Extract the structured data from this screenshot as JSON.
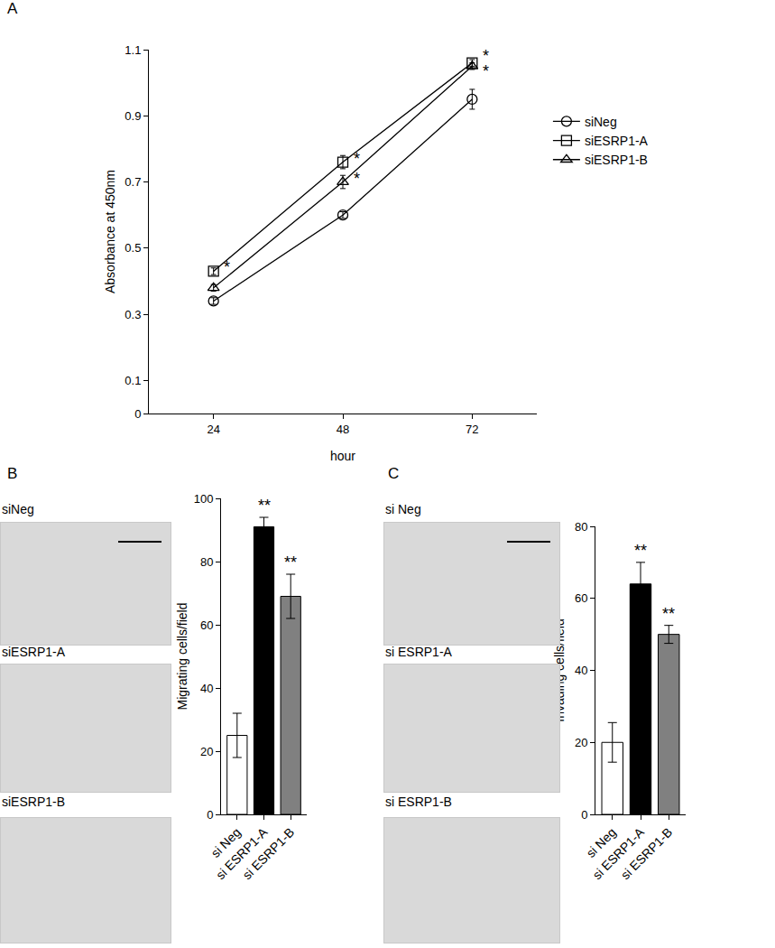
{
  "chart_data": [
    {
      "type": "line",
      "title": "A",
      "x": [
        24,
        48,
        72
      ],
      "x_label": "hour",
      "y_label": "Absorbance at 450nm",
      "xlim": [
        12,
        84
      ],
      "xticks": [
        24,
        48,
        72
      ],
      "ylim": [
        0,
        1.1
      ],
      "yticks": [
        0,
        0.1,
        0.3,
        0.5,
        0.7,
        0.9,
        1.1
      ],
      "legend": "right",
      "grid": false,
      "series": [
        {
          "name": "siNeg",
          "color": "#000000",
          "marker": "circle",
          "values": [
            0.34,
            0.6,
            0.95
          ],
          "errors": [
            0.01,
            0.01,
            0.03
          ]
        },
        {
          "name": "siESRP1-A",
          "color": "#000000",
          "marker": "square",
          "values": [
            0.43,
            0.76,
            1.06
          ],
          "errors": [
            0.01,
            0.02,
            0.01
          ]
        },
        {
          "name": "siESRP1-B",
          "color": "#000000",
          "marker": "triangle",
          "values": [
            0.38,
            0.7,
            1.05
          ],
          "errors": [
            0.01,
            0.02,
            0.01
          ]
        }
      ],
      "annotations": [
        {
          "series": "siESRP1-A",
          "x": 24,
          "text": "*"
        },
        {
          "series": "siESRP1-A",
          "x": 48,
          "text": "*"
        },
        {
          "series": "siESRP1-B",
          "x": 48,
          "text": "*"
        },
        {
          "series": "siESRP1-A",
          "x": 72,
          "text": "*"
        },
        {
          "series": "siESRP1-B",
          "x": 72,
          "text": "*"
        }
      ]
    },
    {
      "type": "bar",
      "title": "B",
      "categories": [
        "si Neg",
        "si ESRP1-A",
        "si ESRP1-B"
      ],
      "values": [
        25,
        91,
        69
      ],
      "errors": [
        7,
        3,
        7
      ],
      "colors": [
        "#ffffff",
        "#000000",
        "#808080"
      ],
      "y_label": "Migrating cells/field",
      "ylim": [
        0,
        100
      ],
      "yticks": [
        0,
        20,
        40,
        60,
        80,
        100
      ],
      "grid": false,
      "annotations": [
        {
          "category": "si ESRP1-A",
          "text": "**"
        },
        {
          "category": "si ESRP1-B",
          "text": "**"
        }
      ]
    },
    {
      "type": "bar",
      "title": "C",
      "categories": [
        "si Neg",
        "si ESRP1-A",
        "si ESRP1-B"
      ],
      "values": [
        20,
        64,
        50
      ],
      "errors": [
        5.5,
        6,
        2.5
      ],
      "colors": [
        "#ffffff",
        "#000000",
        "#808080"
      ],
      "y_label": "Invading cells/field",
      "ylim": [
        0,
        80
      ],
      "yticks": [
        0,
        20,
        40,
        60,
        80
      ],
      "grid": false,
      "annotations": [
        {
          "category": "si ESRP1-A",
          "text": "**"
        },
        {
          "category": "si ESRP1-B",
          "text": "**"
        }
      ]
    }
  ],
  "micrographs": {
    "B": [
      "siNeg",
      "siESRP1-A",
      "siESRP1-B"
    ],
    "C": [
      "si Neg",
      "si ESRP1-A",
      "si ESRP1-B"
    ]
  }
}
